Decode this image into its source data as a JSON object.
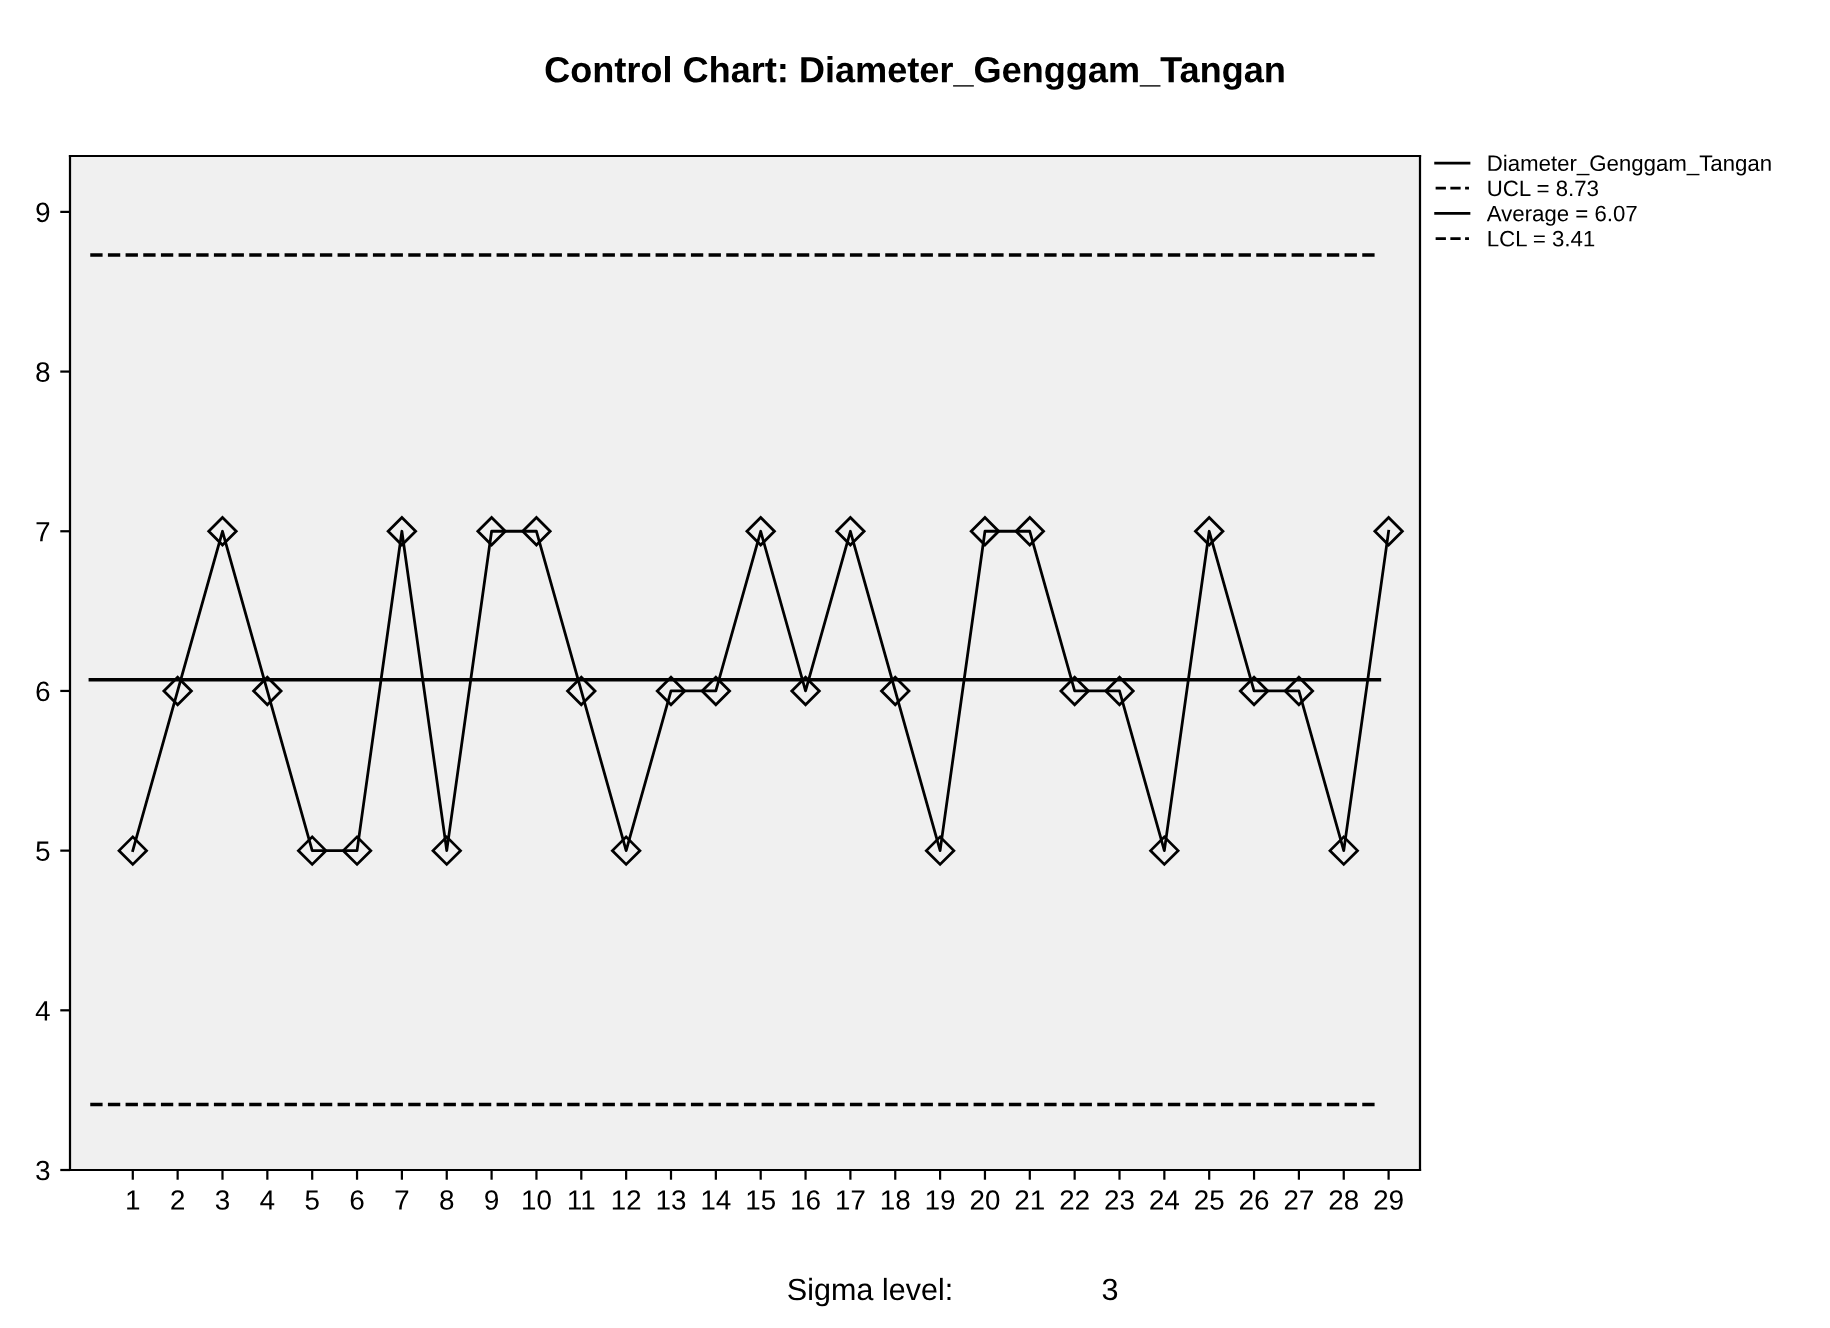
{
  "chart_data": {
    "type": "line",
    "title": "Control Chart: Diameter_Genggam_Tangan",
    "categories": [
      "1",
      "2",
      "3",
      "4",
      "5",
      "6",
      "7",
      "8",
      "9",
      "10",
      "11",
      "12",
      "13",
      "14",
      "15",
      "16",
      "17",
      "18",
      "19",
      "20",
      "21",
      "22",
      "23",
      "24",
      "25",
      "26",
      "27",
      "28",
      "29"
    ],
    "series": [
      {
        "name": "Diameter_Genggam_Tangan",
        "color": "#000000",
        "values": [
          5,
          6,
          7,
          6,
          5,
          5,
          7,
          5,
          7,
          7,
          6,
          5,
          6,
          6,
          7,
          6,
          7,
          6,
          5,
          7,
          7,
          6,
          6,
          5,
          7,
          6,
          6,
          5,
          7
        ]
      }
    ],
    "ref_lines": [
      {
        "axis": "y",
        "value": 8.73,
        "label": "UCL = 8.73",
        "color": "#000000",
        "line_style": "dashed"
      },
      {
        "axis": "y",
        "value": 6.07,
        "label": "Average = 6.07",
        "color": "#000000",
        "line_style": "solid"
      },
      {
        "axis": "y",
        "value": 3.41,
        "label": "LCL = 3.41",
        "color": "#000000",
        "line_style": "dashed"
      }
    ],
    "ylim": [
      3,
      9.35
    ],
    "yticks": [
      3,
      4,
      5,
      6,
      7,
      8,
      9
    ],
    "marker": "diamond",
    "line_style": "solid",
    "legend": "right",
    "grid": false,
    "annotations": [
      "Sigma level:",
      "3"
    ]
  }
}
